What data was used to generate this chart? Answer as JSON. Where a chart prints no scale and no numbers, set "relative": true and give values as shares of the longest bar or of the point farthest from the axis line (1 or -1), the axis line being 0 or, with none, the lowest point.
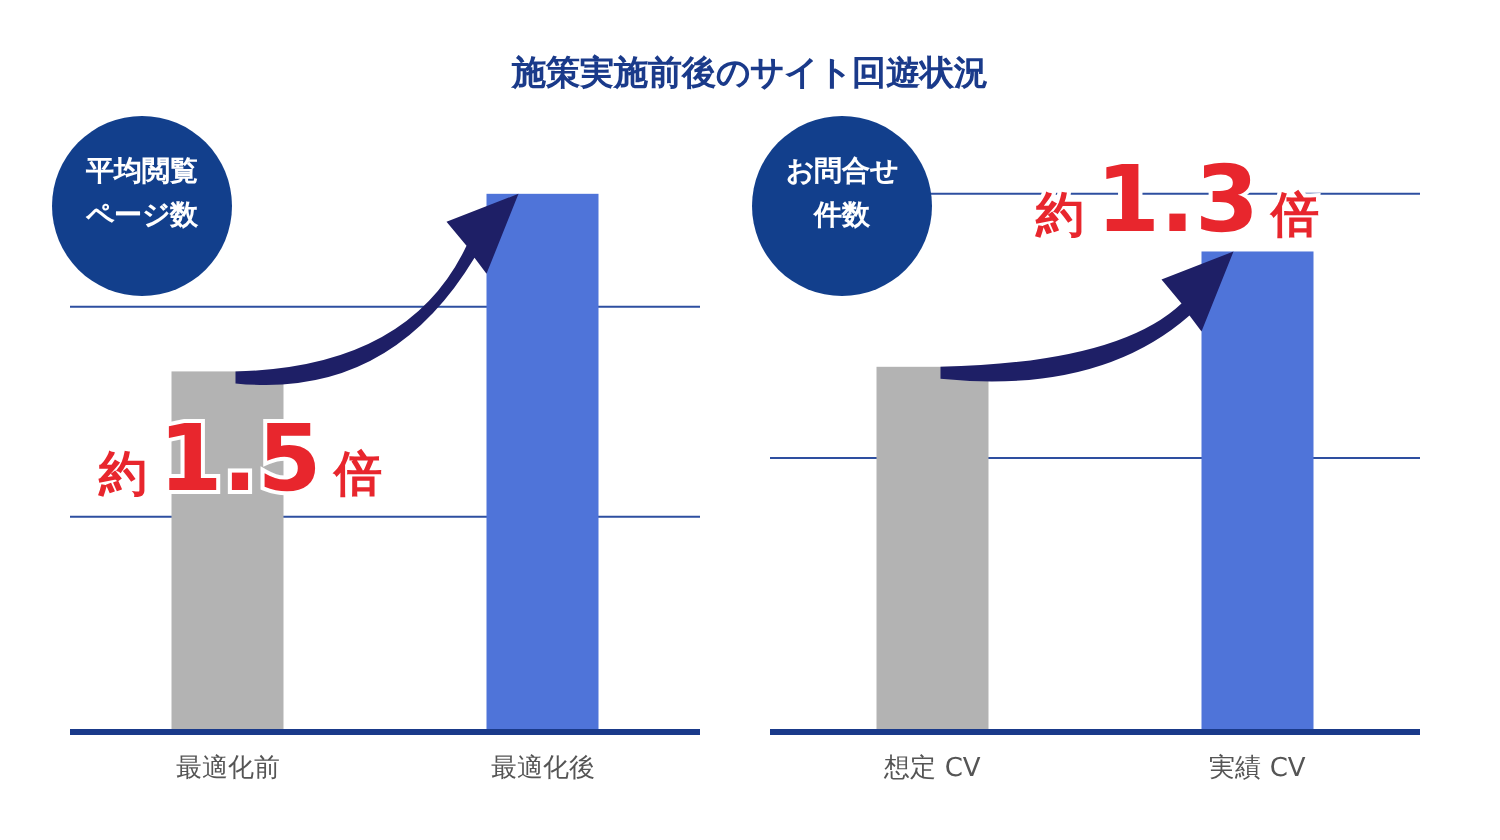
{
  "chart_data": [
    {
      "type": "bar",
      "title": "施策実施前後のサイト回遊状況",
      "categories": [
        "最適化前",
        "最適化後"
      ],
      "relative": true,
      "colors": [
        "#b3b3b3",
        "#4f74d9"
      ],
      "values": [
        0.67,
        1
      ],
      "ref_lines": [
        {
          "axis": "y",
          "value": 0.4,
          "color": "#2e4fa0"
        },
        {
          "axis": "y",
          "value": 0.79,
          "color": "#2e4fa0"
        }
      ],
      "annotations": [
        "平均閲覧ページ数",
        "約1.5倍"
      ]
    },
    {
      "type": "bar",
      "categories": [
        "想定 CV",
        "実績 CV"
      ],
      "relative": true,
      "colors": [
        "#b3b3b3",
        "#4f74d9"
      ],
      "values": [
        0.76,
        1
      ],
      "ref_lines": [
        {
          "axis": "y",
          "value": 0.57,
          "color": "#2e4fa0"
        },
        {
          "axis": "y",
          "value": 1.12,
          "color": "#2e4fa0"
        }
      ],
      "annotations": [
        "お問合せ件数",
        "約1.3倍"
      ]
    }
  ]
}
